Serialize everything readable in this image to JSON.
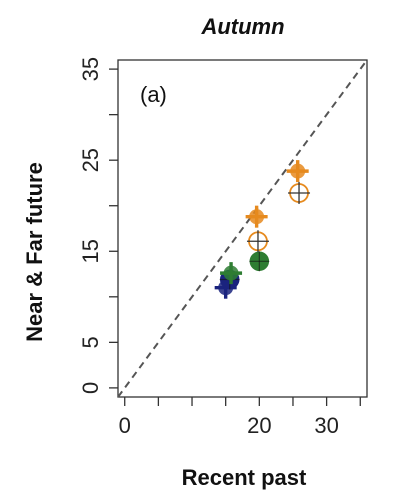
{
  "chart_data": {
    "type": "scatter",
    "title": "Autumn",
    "panel_label": "(a)",
    "xlabel": "Recent past",
    "ylabel": "Near & Far future",
    "xlim": [
      -1,
      36
    ],
    "ylim": [
      -1,
      36
    ],
    "x_ticks": [
      0,
      10,
      20,
      30
    ],
    "x_tick_labels": [
      "0",
      "",
      "20",
      "30"
    ],
    "y_ticks": [
      0,
      5,
      15,
      25,
      35
    ],
    "y_tick_labels": [
      "0",
      "5",
      "15",
      "25",
      "35"
    ],
    "x_minor_ticks": [
      5,
      15,
      25,
      35
    ],
    "y_minor_ticks": [
      10,
      20,
      30
    ],
    "reference_line": "1:1",
    "grid": false,
    "series": [
      {
        "color": "#1a237e",
        "points": [
          {
            "x": 15.0,
            "y": 11.0,
            "marker": "plus-filled"
          },
          {
            "x": 15.6,
            "y": 11.9,
            "marker": "circle-plus"
          }
        ]
      },
      {
        "color": "#2e7d32",
        "points": [
          {
            "x": 15.8,
            "y": 12.6,
            "marker": "plus-filled"
          },
          {
            "x": 20.0,
            "y": 13.9,
            "marker": "circle-plus"
          }
        ]
      },
      {
        "color": "#e68a1e",
        "points": [
          {
            "x": 19.6,
            "y": 18.8,
            "marker": "plus-filled"
          },
          {
            "x": 19.8,
            "y": 16.1,
            "marker": "circle-plus-open"
          },
          {
            "x": 25.7,
            "y": 23.8,
            "marker": "plus-filled"
          },
          {
            "x": 25.9,
            "y": 21.4,
            "marker": "circle-plus-open"
          }
        ]
      }
    ]
  }
}
